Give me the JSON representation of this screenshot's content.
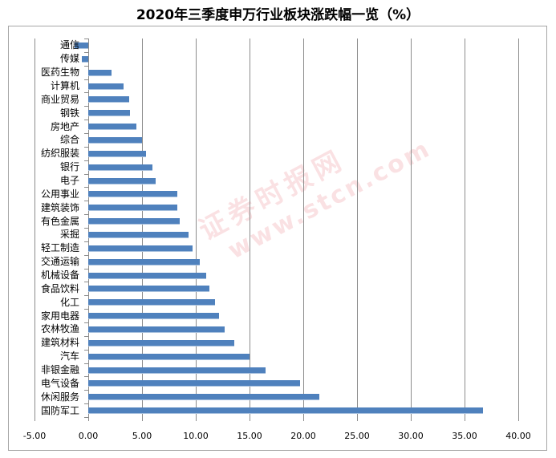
{
  "title": "2020年三季度申万行业板块涨跌幅一览（%）",
  "watermark": {
    "cn": "证券时报网",
    "en": "www.stcn.com"
  },
  "colors": {
    "bar": "#4f81bd",
    "grid": "#8c8c8c",
    "frame": "#a6a6a6"
  },
  "chart_data": {
    "type": "bar",
    "orientation": "horizontal",
    "title": "2020年三季度申万行业板块涨跌幅一览（%）",
    "xlabel": "",
    "ylabel": "",
    "xlim": [
      -5,
      40
    ],
    "x_ticks": [
      "-5.00",
      "0.00",
      "5.00",
      "10.00",
      "15.00",
      "20.00",
      "25.00",
      "30.00",
      "35.00",
      "40.00"
    ],
    "grid": "vertical",
    "legend": null,
    "categories": [
      "通信",
      "传媒",
      "医药生物",
      "计算机",
      "商业贸易",
      "钢铁",
      "房地产",
      "综合",
      "纺织服装",
      "银行",
      "电子",
      "公用事业",
      "建筑装饰",
      "有色金属",
      "采掘",
      "轻工制造",
      "交通运输",
      "机械设备",
      "食品饮料",
      "化工",
      "家用电器",
      "农林牧渔",
      "建筑材料",
      "汽车",
      "非银金融",
      "电气设备",
      "休闲服务",
      "国防军工"
    ],
    "values": [
      -1.3,
      -0.6,
      2.2,
      3.3,
      3.8,
      3.9,
      4.5,
      5.0,
      5.4,
      6.0,
      6.3,
      8.3,
      8.3,
      8.5,
      9.3,
      9.7,
      10.4,
      11.0,
      11.3,
      11.8,
      12.2,
      12.7,
      13.6,
      15.0,
      16.5,
      19.7,
      21.5,
      36.7
    ]
  }
}
